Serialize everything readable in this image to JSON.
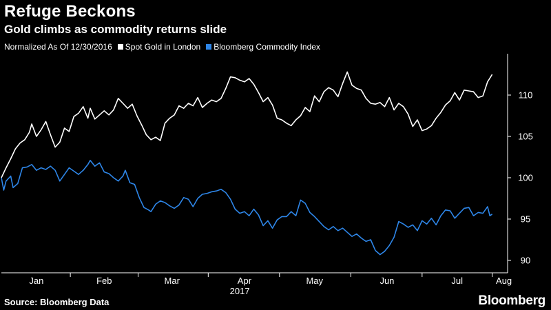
{
  "header": {
    "title": "Refuge Beckons",
    "subtitle": "Gold climbs as commodity returns slide"
  },
  "legend": {
    "note": "Normalized As Of 12/30/2016",
    "gold": "Spot Gold in London",
    "bcom": "Bloomberg Commodity Index"
  },
  "footer": {
    "source": "Source: Bloomberg Data",
    "brand": "Bloomberg"
  },
  "colors": {
    "gold": "#ffffff",
    "bcom": "#2e86e8",
    "axis": "#ffffff",
    "background": "#000000"
  },
  "chart_data": {
    "type": "line",
    "title": "Refuge Beckons",
    "subtitle": "Gold climbs as commodity returns slide",
    "xlabel": "2017",
    "ylabel": "",
    "ylim": [
      88.5,
      115
    ],
    "yticks": [
      90,
      95,
      100,
      105,
      110
    ],
    "y_axis_side": "right",
    "x_range_days": [
      0,
      216
    ],
    "xticks": [
      {
        "label": "Jan",
        "day": 15
      },
      {
        "label": "Feb",
        "day": 44
      },
      {
        "label": "Mar",
        "day": 73
      },
      {
        "label": "Apr",
        "day": 104
      },
      {
        "label": "May",
        "day": 134
      },
      {
        "label": "Jun",
        "day": 165
      },
      {
        "label": "Jul",
        "day": 195
      },
      {
        "label": "Aug",
        "day": 215
      }
    ],
    "x_unit": "days since 2016-12-30",
    "series": [
      {
        "name": "Spot Gold in London",
        "color": "#ffffff",
        "points": [
          [
            0,
            100
          ],
          [
            2,
            101.2
          ],
          [
            4,
            102.3
          ],
          [
            6,
            103.5
          ],
          [
            8,
            104.2
          ],
          [
            10,
            104.6
          ],
          [
            12,
            105.5
          ],
          [
            13,
            106.5
          ],
          [
            15,
            105.0
          ],
          [
            17,
            105.8
          ],
          [
            19,
            106.8
          ],
          [
            21,
            105.2
          ],
          [
            23,
            103.7
          ],
          [
            25,
            104.3
          ],
          [
            27,
            106.0
          ],
          [
            29,
            105.6
          ],
          [
            31,
            107.4
          ],
          [
            33,
            107.8
          ],
          [
            35,
            108.6
          ],
          [
            37,
            107.2
          ],
          [
            38,
            108.4
          ],
          [
            40,
            107.1
          ],
          [
            42,
            107.6
          ],
          [
            44,
            108.1
          ],
          [
            46,
            107.6
          ],
          [
            48,
            108.2
          ],
          [
            50,
            109.6
          ],
          [
            52,
            109.0
          ],
          [
            54,
            108.4
          ],
          [
            56,
            108.9
          ],
          [
            58,
            107.5
          ],
          [
            60,
            106.4
          ],
          [
            62,
            105.2
          ],
          [
            64,
            104.6
          ],
          [
            66,
            104.9
          ],
          [
            68,
            104.5
          ],
          [
            70,
            106.6
          ],
          [
            72,
            107.2
          ],
          [
            74,
            107.6
          ],
          [
            76,
            108.7
          ],
          [
            78,
            108.4
          ],
          [
            80,
            109.0
          ],
          [
            82,
            108.7
          ],
          [
            84,
            109.7
          ],
          [
            86,
            108.5
          ],
          [
            88,
            109.0
          ],
          [
            90,
            109.4
          ],
          [
            92,
            109.2
          ],
          [
            94,
            109.6
          ],
          [
            96,
            110.8
          ],
          [
            98,
            112.2
          ],
          [
            100,
            112.1
          ],
          [
            102,
            111.8
          ],
          [
            104,
            111.6
          ],
          [
            106,
            112.0
          ],
          [
            108,
            111.3
          ],
          [
            110,
            110.3
          ],
          [
            112,
            109.2
          ],
          [
            114,
            109.7
          ],
          [
            116,
            108.8
          ],
          [
            118,
            107.2
          ],
          [
            120,
            107.0
          ],
          [
            122,
            106.6
          ],
          [
            124,
            106.3
          ],
          [
            126,
            107.0
          ],
          [
            128,
            107.5
          ],
          [
            130,
            108.5
          ],
          [
            132,
            108.0
          ],
          [
            134,
            109.9
          ],
          [
            136,
            109.2
          ],
          [
            138,
            110.4
          ],
          [
            140,
            110.9
          ],
          [
            142,
            110.6
          ],
          [
            144,
            109.8
          ],
          [
            146,
            111.4
          ],
          [
            148,
            112.8
          ],
          [
            150,
            111.2
          ],
          [
            152,
            110.8
          ],
          [
            154,
            110.6
          ],
          [
            156,
            109.6
          ],
          [
            158,
            109.0
          ],
          [
            160,
            108.9
          ],
          [
            162,
            109.1
          ],
          [
            164,
            108.6
          ],
          [
            166,
            109.7
          ],
          [
            168,
            108.2
          ],
          [
            170,
            109.0
          ],
          [
            172,
            108.6
          ],
          [
            174,
            107.7
          ],
          [
            176,
            106.2
          ],
          [
            178,
            107.0
          ],
          [
            180,
            105.7
          ],
          [
            182,
            105.9
          ],
          [
            184,
            106.3
          ],
          [
            186,
            107.2
          ],
          [
            188,
            107.9
          ],
          [
            190,
            108.8
          ],
          [
            192,
            109.3
          ],
          [
            194,
            110.3
          ],
          [
            196,
            109.4
          ],
          [
            198,
            110.6
          ],
          [
            200,
            110.5
          ],
          [
            202,
            110.4
          ],
          [
            204,
            109.7
          ],
          [
            206,
            109.9
          ],
          [
            208,
            111.6
          ],
          [
            210,
            112.5
          ]
        ]
      },
      {
        "name": "Bloomberg Commodity Index",
        "color": "#2e86e8",
        "points": [
          [
            0,
            100
          ],
          [
            1,
            98.5
          ],
          [
            2,
            99.6
          ],
          [
            4,
            100.2
          ],
          [
            5,
            98.8
          ],
          [
            7,
            99.3
          ],
          [
            9,
            101.2
          ],
          [
            11,
            101.3
          ],
          [
            13,
            101.6
          ],
          [
            15,
            100.9
          ],
          [
            17,
            101.2
          ],
          [
            19,
            101.0
          ],
          [
            21,
            101.4
          ],
          [
            23,
            100.9
          ],
          [
            25,
            99.6
          ],
          [
            27,
            100.4
          ],
          [
            29,
            101.2
          ],
          [
            31,
            100.8
          ],
          [
            33,
            100.4
          ],
          [
            35,
            100.9
          ],
          [
            37,
            101.6
          ],
          [
            38,
            102.1
          ],
          [
            40,
            101.4
          ],
          [
            42,
            101.8
          ],
          [
            44,
            100.7
          ],
          [
            46,
            100.5
          ],
          [
            48,
            100.0
          ],
          [
            50,
            99.6
          ],
          [
            52,
            100.2
          ],
          [
            53,
            100.9
          ],
          [
            55,
            99.4
          ],
          [
            57,
            99.2
          ],
          [
            59,
            97.6
          ],
          [
            61,
            96.4
          ],
          [
            63,
            96.1
          ],
          [
            64,
            95.9
          ],
          [
            66,
            96.8
          ],
          [
            68,
            97.2
          ],
          [
            70,
            97.0
          ],
          [
            72,
            96.6
          ],
          [
            74,
            96.3
          ],
          [
            76,
            96.7
          ],
          [
            78,
            97.6
          ],
          [
            80,
            97.4
          ],
          [
            82,
            96.5
          ],
          [
            84,
            97.5
          ],
          [
            86,
            98.0
          ],
          [
            88,
            98.1
          ],
          [
            90,
            98.3
          ],
          [
            92,
            98.4
          ],
          [
            94,
            98.6
          ],
          [
            96,
            98.2
          ],
          [
            98,
            97.4
          ],
          [
            100,
            96.2
          ],
          [
            102,
            95.7
          ],
          [
            104,
            95.9
          ],
          [
            106,
            95.4
          ],
          [
            108,
            96.2
          ],
          [
            110,
            95.5
          ],
          [
            112,
            94.2
          ],
          [
            114,
            94.8
          ],
          [
            116,
            93.9
          ],
          [
            118,
            94.9
          ],
          [
            120,
            95.3
          ],
          [
            122,
            95.3
          ],
          [
            124,
            95.9
          ],
          [
            126,
            95.4
          ],
          [
            128,
            97.3
          ],
          [
            130,
            96.9
          ],
          [
            132,
            95.8
          ],
          [
            134,
            95.3
          ],
          [
            136,
            94.7
          ],
          [
            138,
            94.1
          ],
          [
            140,
            93.7
          ],
          [
            142,
            94.1
          ],
          [
            144,
            93.6
          ],
          [
            146,
            93.9
          ],
          [
            148,
            93.4
          ],
          [
            150,
            92.9
          ],
          [
            152,
            93.2
          ],
          [
            154,
            92.7
          ],
          [
            156,
            92.3
          ],
          [
            158,
            92.5
          ],
          [
            160,
            91.2
          ],
          [
            162,
            90.7
          ],
          [
            164,
            91.1
          ],
          [
            166,
            91.8
          ],
          [
            168,
            92.8
          ],
          [
            170,
            94.7
          ],
          [
            172,
            94.4
          ],
          [
            174,
            94.0
          ],
          [
            176,
            94.3
          ],
          [
            178,
            93.6
          ],
          [
            180,
            94.8
          ],
          [
            182,
            94.4
          ],
          [
            184,
            95.1
          ],
          [
            186,
            94.3
          ],
          [
            188,
            95.4
          ],
          [
            190,
            96.1
          ],
          [
            192,
            96.0
          ],
          [
            194,
            95.1
          ],
          [
            196,
            95.7
          ],
          [
            198,
            96.3
          ],
          [
            200,
            96.4
          ],
          [
            202,
            95.4
          ],
          [
            204,
            95.8
          ],
          [
            206,
            95.7
          ],
          [
            208,
            96.5
          ],
          [
            209,
            95.4
          ],
          [
            210,
            95.6
          ]
        ]
      }
    ]
  }
}
